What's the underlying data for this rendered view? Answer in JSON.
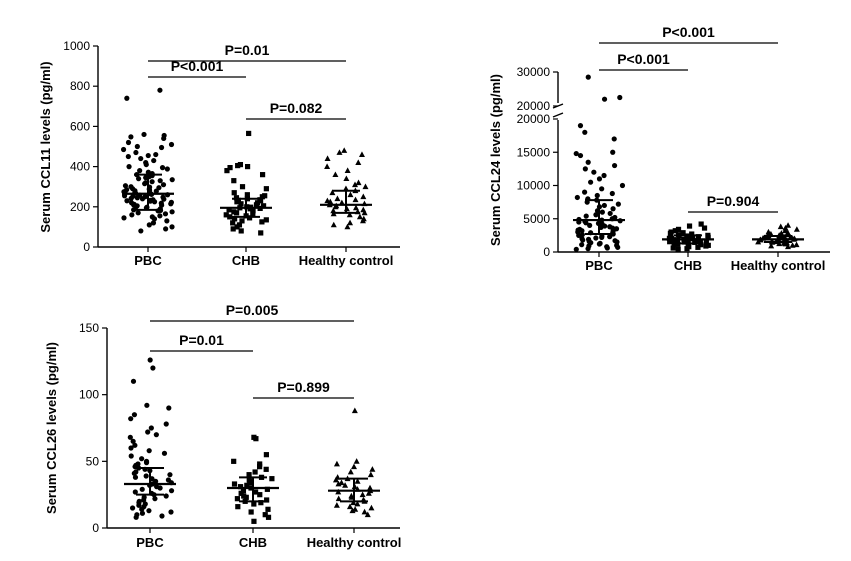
{
  "chart_data": [
    {
      "type": "scatter",
      "ylabel": "Serum CCL11 levels (pg/ml)",
      "ylim": [
        0,
        1000
      ],
      "yticks": [
        "0",
        "200",
        "400",
        "600",
        "800",
        "1000"
      ],
      "categories": [
        "PBC",
        "CHB",
        "Healthy control"
      ],
      "series": [
        {
          "marker": "circle",
          "median": 265,
          "q1": 185,
          "q3": 360,
          "values": [
            780,
            740,
            560,
            555,
            548,
            540,
            520,
            510,
            500,
            495,
            485,
            470,
            460,
            455,
            450,
            440,
            430,
            420,
            410,
            400,
            395,
            388,
            380,
            372,
            365,
            360,
            355,
            350,
            345,
            340,
            335,
            330,
            325,
            320,
            315,
            310,
            305,
            300,
            298,
            295,
            290,
            288,
            285,
            282,
            280,
            278,
            275,
            272,
            270,
            268,
            265,
            262,
            260,
            258,
            255,
            252,
            250,
            248,
            245,
            242,
            240,
            238,
            235,
            232,
            230,
            228,
            225,
            222,
            220,
            218,
            215,
            212,
            210,
            208,
            205,
            200,
            198,
            195,
            190,
            185,
            182,
            180,
            175,
            170,
            165,
            160,
            155,
            150,
            145,
            140,
            130,
            120,
            110,
            100,
            90,
            80
          ]
        },
        {
          "marker": "square",
          "median": 195,
          "q1": 150,
          "q3": 240,
          "values": [
            565,
            410,
            405,
            400,
            395,
            380,
            360,
            330,
            300,
            290,
            270,
            260,
            255,
            250,
            245,
            240,
            235,
            232,
            230,
            225,
            220,
            215,
            210,
            205,
            200,
            198,
            195,
            192,
            190,
            185,
            180,
            175,
            170,
            165,
            160,
            155,
            150,
            145,
            140,
            135,
            130,
            125,
            120,
            110,
            100,
            90,
            80,
            70
          ]
        },
        {
          "marker": "triangle",
          "median": 210,
          "q1": 170,
          "q3": 280,
          "values": [
            480,
            470,
            460,
            440,
            420,
            400,
            380,
            360,
            340,
            320,
            310,
            300,
            290,
            280,
            270,
            260,
            250,
            240,
            235,
            230,
            225,
            220,
            215,
            210,
            205,
            200,
            195,
            190,
            185,
            180,
            175,
            170,
            165,
            160,
            150,
            140,
            130,
            120,
            110,
            100
          ]
        }
      ],
      "annotations": [
        {
          "from": 0,
          "to": 2,
          "label": "P=0.01",
          "y": 920
        },
        {
          "from": 0,
          "to": 1,
          "label": "P<0.001",
          "y": 840
        },
        {
          "from": 1,
          "to": 2,
          "label": "P=0.082",
          "y": 640
        }
      ]
    },
    {
      "type": "scatter",
      "ylabel": "Serum CCL24 levels (pg/ml)",
      "broken_axis": true,
      "ylim": [
        0,
        30000
      ],
      "yticks": [
        "0",
        "5000",
        "10000",
        "15000",
        "20000",
        "20000",
        "30000"
      ],
      "categories": [
        "PBC",
        "CHB",
        "Healthy control"
      ],
      "series": [
        {
          "marker": "circle",
          "median": 4800,
          "q1": 2700,
          "q3": 7800,
          "values": [
            28500,
            22500,
            22000,
            19000,
            18000,
            17000,
            15000,
            14800,
            14500,
            13500,
            13000,
            12500,
            12000,
            11500,
            11000,
            10500,
            10000,
            9500,
            9000,
            8800,
            8500,
            8200,
            8000,
            7800,
            7500,
            7200,
            7000,
            6800,
            6500,
            6200,
            6000,
            5800,
            5600,
            5400,
            5200,
            5000,
            4900,
            4800,
            4700,
            4600,
            4500,
            4400,
            4300,
            4200,
            4100,
            4000,
            3900,
            3800,
            3700,
            3600,
            3500,
            3400,
            3300,
            3200,
            3100,
            3000,
            2900,
            2800,
            2700,
            2600,
            2500,
            2400,
            2300,
            2200,
            2100,
            2000,
            1900,
            1800,
            1700,
            1600,
            1500,
            1400,
            1300,
            1200,
            1100,
            1000,
            900,
            800,
            700,
            600,
            500,
            400
          ]
        },
        {
          "marker": "square",
          "median": 1900,
          "q1": 1300,
          "q3": 2500,
          "values": [
            4200,
            3900,
            3600,
            3400,
            3200,
            3000,
            2900,
            2800,
            2700,
            2600,
            2500,
            2450,
            2400,
            2350,
            2300,
            2250,
            2200,
            2150,
            2100,
            2050,
            2000,
            1950,
            1900,
            1850,
            1800,
            1750,
            1700,
            1650,
            1600,
            1550,
            1500,
            1450,
            1400,
            1350,
            1300,
            1250,
            1200,
            1150,
            1100,
            1000,
            900,
            800,
            700,
            600,
            500,
            400
          ]
        },
        {
          "marker": "triangle",
          "median": 1900,
          "q1": 1500,
          "q3": 2400,
          "values": [
            4000,
            3800,
            3600,
            3400,
            3200,
            3000,
            2900,
            2800,
            2700,
            2600,
            2500,
            2450,
            2400,
            2350,
            2300,
            2250,
            2200,
            2150,
            2100,
            2050,
            2000,
            1950,
            1900,
            1850,
            1800,
            1750,
            1700,
            1650,
            1600,
            1550,
            1500,
            1450,
            1400,
            1350,
            1300,
            1250,
            1200,
            1100,
            1000,
            900,
            800
          ]
        }
      ],
      "annotations": [
        {
          "from": 0,
          "to": 2,
          "label": "P<0.001"
        },
        {
          "from": 0,
          "to": 1,
          "label": "P<0.001"
        },
        {
          "from": 1,
          "to": 2,
          "label": "P=0.904"
        }
      ]
    },
    {
      "type": "scatter",
      "ylabel": "Serum CCL26 levels (pg/ml)",
      "ylim": [
        0,
        150
      ],
      "yticks": [
        "0",
        "50",
        "100",
        "150"
      ],
      "categories": [
        "PBC",
        "CHB",
        "Healthy control"
      ],
      "series": [
        {
          "marker": "circle",
          "median": 33,
          "q1": 25,
          "q3": 45,
          "values": [
            126,
            120,
            110,
            92,
            90,
            85,
            82,
            78,
            75,
            72,
            70,
            68,
            65,
            62,
            60,
            58,
            56,
            54,
            52,
            50,
            49,
            48,
            47,
            46,
            45,
            44,
            43,
            42,
            41,
            40,
            39,
            38,
            37,
            36,
            35,
            34,
            33,
            32,
            31,
            30,
            29,
            28,
            27,
            26,
            25,
            24,
            23,
            22,
            21,
            20,
            19,
            18,
            17,
            16,
            15,
            14,
            13,
            12,
            11,
            10,
            9,
            8
          ]
        },
        {
          "marker": "square",
          "median": 30,
          "q1": 20,
          "q3": 38,
          "values": [
            68,
            67,
            55,
            50,
            48,
            46,
            44,
            42,
            40,
            38,
            37,
            36,
            35,
            34,
            33,
            32,
            31,
            30,
            29,
            28,
            27,
            26,
            25,
            24,
            23,
            22,
            21,
            20,
            19,
            18,
            16,
            14,
            12,
            10,
            8,
            5
          ]
        },
        {
          "marker": "triangle",
          "median": 28,
          "q1": 20,
          "q3": 37,
          "values": [
            88,
            50,
            48,
            46,
            44,
            42,
            40,
            38,
            37,
            36,
            35,
            34,
            33,
            32,
            31,
            30,
            29,
            28,
            27,
            26,
            25,
            24,
            23,
            22,
            21,
            20,
            19,
            18,
            17,
            16,
            15,
            14,
            13,
            12,
            10
          ]
        }
      ],
      "annotations": [
        {
          "from": 0,
          "to": 2,
          "label": "P=0.005",
          "y": 152
        },
        {
          "from": 0,
          "to": 1,
          "label": "P=0.01",
          "y": 132
        },
        {
          "from": 1,
          "to": 2,
          "label": "P=0.899",
          "y": 103
        }
      ]
    }
  ]
}
